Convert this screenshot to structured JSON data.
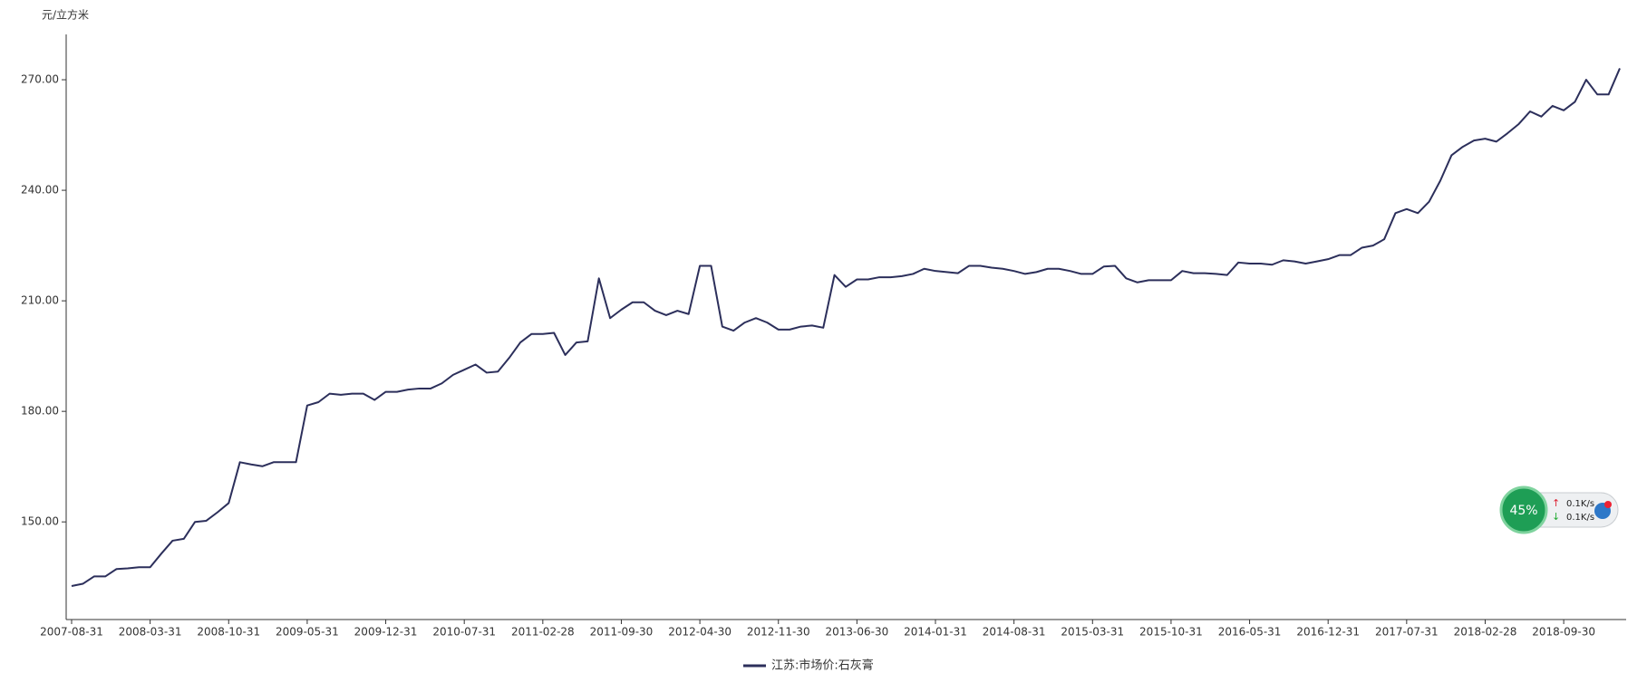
{
  "chart_data": {
    "type": "line",
    "y_label": "元/立方米",
    "categories": [
      "2007-08-31",
      null,
      null,
      null,
      null,
      null,
      null,
      "2008-03-31",
      null,
      null,
      null,
      null,
      null,
      null,
      "2008-10-31",
      null,
      null,
      null,
      null,
      null,
      null,
      "2009-05-31",
      null,
      null,
      null,
      null,
      null,
      null,
      "2009-12-31",
      null,
      null,
      null,
      null,
      null,
      null,
      "2010-07-31",
      null,
      null,
      null,
      null,
      null,
      null,
      "2011-02-28",
      null,
      null,
      null,
      null,
      null,
      null,
      "2011-09-30",
      null,
      null,
      null,
      null,
      null,
      null,
      "2012-04-30",
      null,
      null,
      null,
      null,
      null,
      null,
      "2012-11-30",
      null,
      null,
      null,
      null,
      null,
      null,
      "2013-06-30",
      null,
      null,
      null,
      null,
      null,
      null,
      "2014-01-31",
      null,
      null,
      null,
      null,
      null,
      null,
      "2014-08-31",
      null,
      null,
      null,
      null,
      null,
      null,
      "2015-03-31",
      null,
      null,
      null,
      null,
      null,
      null,
      "2015-10-31",
      null,
      null,
      null,
      null,
      null,
      null,
      "2016-05-31",
      null,
      null,
      null,
      null,
      null,
      null,
      "2016-12-31",
      null,
      null,
      null,
      null,
      null,
      null,
      "2017-07-31",
      null,
      null,
      null,
      null,
      null,
      null,
      "2018-02-28",
      null,
      null,
      null,
      null,
      null,
      null,
      "2018-09-30",
      null,
      null,
      null,
      null,
      null
    ],
    "series": [
      {
        "name": "江苏:市场价:石灰膏",
        "color": "#2c2f5b",
        "values": [
          132.6,
          133.2,
          135.2,
          135.2,
          137.2,
          137.4,
          137.7,
          137.7,
          141.4,
          144.9,
          145.4,
          150.0,
          150.3,
          152.6,
          155.1,
          166.2,
          165.6,
          165.1,
          166.2,
          166.2,
          166.2,
          181.6,
          182.5,
          184.8,
          184.5,
          184.8,
          184.8,
          183.1,
          185.3,
          185.3,
          185.9,
          186.2,
          186.2,
          187.6,
          189.9,
          191.3,
          192.7,
          190.5,
          190.8,
          194.5,
          198.7,
          201.0,
          201.0,
          201.3,
          195.3,
          198.7,
          199.0,
          216.1,
          205.3,
          207.6,
          209.6,
          209.6,
          207.3,
          206.1,
          207.3,
          206.4,
          219.5,
          219.5,
          203.0,
          201.9,
          204.1,
          205.3,
          204.1,
          202.2,
          202.2,
          203.0,
          203.3,
          202.7,
          217.0,
          213.8,
          215.8,
          215.8,
          216.4,
          216.4,
          216.7,
          217.3,
          218.7,
          218.1,
          217.8,
          217.5,
          219.5,
          219.5,
          219.0,
          218.7,
          218.1,
          217.3,
          217.8,
          218.7,
          218.7,
          218.1,
          217.3,
          217.3,
          219.3,
          219.5,
          216.1,
          215.0,
          215.6,
          215.6,
          215.6,
          218.1,
          217.5,
          217.5,
          217.3,
          217.0,
          220.4,
          220.1,
          220.1,
          219.8,
          221.0,
          220.7,
          220.1,
          220.7,
          221.3,
          222.4,
          222.4,
          224.4,
          225.0,
          226.7,
          233.8,
          234.9,
          233.8,
          236.9,
          242.6,
          249.5,
          251.8,
          253.5,
          254.0,
          253.2,
          255.5,
          258.0,
          261.4,
          260.0,
          262.9,
          261.7,
          264.0,
          270.0,
          266.0,
          266.0,
          273.1
        ]
      }
    ],
    "ylim": [
      123.5,
      282.3
    ],
    "yticks": [
      {
        "value": 150,
        "label": "150.00"
      },
      {
        "value": 180,
        "label": "180.00"
      },
      {
        "value": 210,
        "label": "210.00"
      },
      {
        "value": 240,
        "label": "240.00"
      },
      {
        "value": 270,
        "label": "270.00"
      }
    ],
    "grid": false,
    "legend": "bottom"
  },
  "overlay": {
    "percent": "45%",
    "upload": "0.1K/s",
    "download": "0.1K/s"
  }
}
